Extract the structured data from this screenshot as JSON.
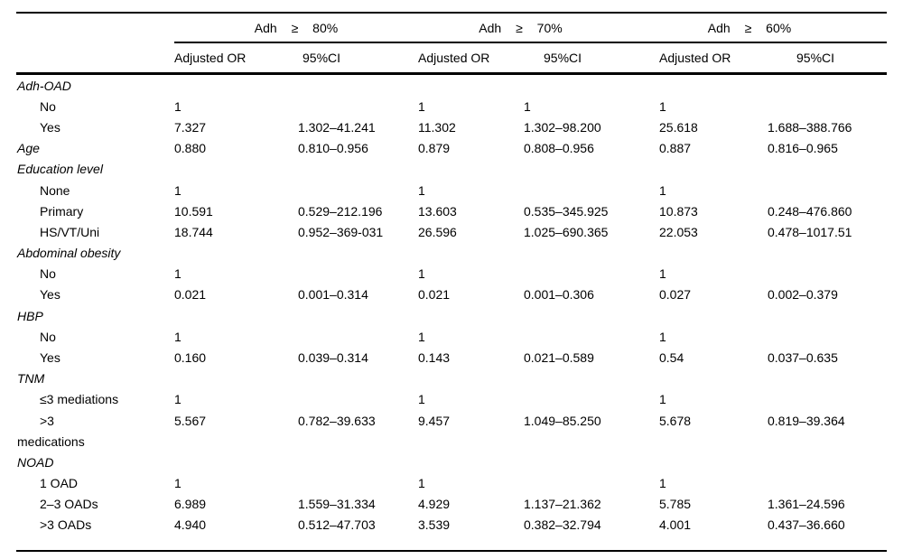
{
  "table": {
    "col_groups": [
      {
        "label": "Adh ≥ 80%"
      },
      {
        "label": "Adh ≥ 70%"
      },
      {
        "label": "Adh ≥ 60%"
      }
    ],
    "sub_headers": {
      "or": "Adjusted OR",
      "ci": "95%CI"
    },
    "rows": [
      {
        "type": "section",
        "label": "Adh-OAD",
        "cells": [
          "",
          "",
          "",
          "",
          "",
          ""
        ]
      },
      {
        "type": "item",
        "label": "No",
        "cells": [
          "1",
          "",
          "1",
          "1",
          "1",
          ""
        ]
      },
      {
        "type": "item",
        "label": "Yes",
        "cells": [
          "7.327",
          "1.302–41.241",
          "11.302",
          "1.302–98.200",
          "25.618",
          "1.688–388.766"
        ]
      },
      {
        "type": "section",
        "label": "Age",
        "cells": [
          "0.880",
          "0.810–0.956",
          "0.879",
          "0.808–0.956",
          "0.887",
          "0.816–0.965"
        ]
      },
      {
        "type": "section",
        "label": "Education level",
        "cells": [
          "",
          "",
          "",
          "",
          "",
          ""
        ]
      },
      {
        "type": "item",
        "label": "None",
        "cells": [
          "1",
          "",
          "1",
          "",
          "1",
          ""
        ]
      },
      {
        "type": "item",
        "label": "Primary",
        "cells": [
          "10.591",
          "0.529–212.196",
          "13.603",
          "0.535–345.925",
          "10.873",
          "0.248–476.860"
        ]
      },
      {
        "type": "item",
        "label": "HS/VT/Uni",
        "cells": [
          "18.744",
          "0.952–369-031",
          "26.596",
          "1.025–690.365",
          "22.053",
          "0.478–1017.51"
        ]
      },
      {
        "type": "section",
        "label": "Abdominal obesity",
        "cells": [
          "",
          "",
          "",
          "",
          "",
          ""
        ]
      },
      {
        "type": "item",
        "label": "No",
        "cells": [
          "1",
          "",
          "1",
          "",
          "1",
          ""
        ]
      },
      {
        "type": "item",
        "label": "Yes",
        "cells": [
          "0.021",
          "0.001–0.314",
          "0.021",
          "0.001–0.306",
          "0.027",
          "0.002–0.379"
        ]
      },
      {
        "type": "section",
        "label": "HBP",
        "cells": [
          "",
          "",
          "",
          "",
          "",
          ""
        ]
      },
      {
        "type": "item",
        "label": "No",
        "cells": [
          "1",
          "",
          "1",
          "",
          "1",
          ""
        ]
      },
      {
        "type": "item",
        "label": "Yes",
        "cells": [
          "0.160",
          "0.039–0.314",
          "0.143",
          "0.021–0.589",
          "0.54",
          "0.037–0.635"
        ]
      },
      {
        "type": "section",
        "label": "TNM",
        "cells": [
          "",
          "",
          "",
          "",
          "",
          ""
        ]
      },
      {
        "type": "item",
        "label": "≤3 mediations",
        "cells": [
          "1",
          "",
          "1",
          "",
          "1",
          ""
        ]
      },
      {
        "type": "item",
        "label": ">3",
        "cells": [
          "5.567",
          "0.782–39.633",
          "9.457",
          "1.049–85.250",
          "5.678",
          "0.819–39.364"
        ]
      },
      {
        "type": "continuation",
        "label": "medications",
        "cells": [
          "",
          "",
          "",
          "",
          "",
          ""
        ]
      },
      {
        "type": "section",
        "label": "NOAD",
        "cells": [
          "",
          "",
          "",
          "",
          "",
          ""
        ]
      },
      {
        "type": "item",
        "label": "1 OAD",
        "cells": [
          "1",
          "",
          "1",
          "",
          "1",
          ""
        ]
      },
      {
        "type": "item",
        "label": "2–3 OADs",
        "cells": [
          "6.989",
          "1.559–31.334",
          "4.929",
          "1.137–21.362",
          "5.785",
          "1.361–24.596"
        ]
      },
      {
        "type": "item",
        "label": ">3 OADs",
        "cells": [
          "4.940",
          "0.512–47.703",
          "3.539",
          "0.382–32.794",
          "4.001",
          "0.437–36.660"
        ]
      }
    ]
  }
}
